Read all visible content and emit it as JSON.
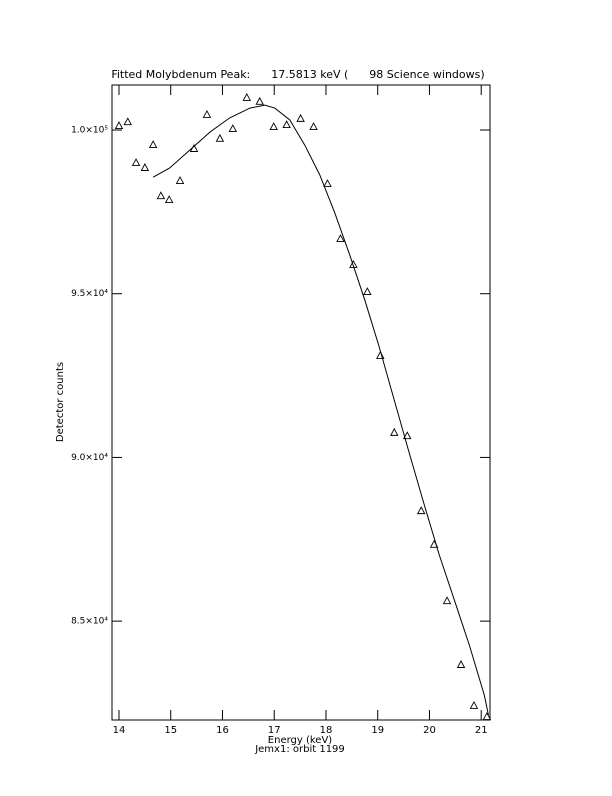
{
  "chart_data": {
    "type": "scatter",
    "title": "Fitted Molybdenum Peak:      17.5813 keV (      98 Science windows)",
    "x_label": "Energy (keV)",
    "y_label": "Detector counts",
    "subtitle": "Jemx1: orbit 1199",
    "xlim": [
      13.865,
      21.17
    ],
    "ylim": [
      81980,
      101375
    ],
    "xticks": [
      14,
      15,
      16,
      17,
      18,
      19,
      20,
      21
    ],
    "yticks": [
      {
        "value": 85000,
        "label": "8.5×10⁴"
      },
      {
        "value": 90000,
        "label": "9.0×10⁴"
      },
      {
        "value": 95000,
        "label": "9.5×10⁴"
      },
      {
        "value": 100000,
        "label": "1.0×10⁵"
      }
    ],
    "color": "#000000",
    "series": [
      {
        "marker": "triangle",
        "x": [
          14.0,
          14.17,
          14.33,
          14.5,
          14.66,
          14.81,
          14.97,
          15.18,
          15.45,
          15.7,
          15.95,
          16.2,
          16.47,
          16.72,
          16.99,
          17.24,
          17.51,
          17.76,
          18.03,
          18.28,
          18.53,
          18.8,
          19.05,
          19.32,
          19.57,
          19.84,
          20.09,
          20.34,
          20.61,
          20.86,
          21.11
        ],
        "values": [
          100120,
          100240,
          98990,
          98840,
          99540,
          97980,
          97860,
          98440,
          99420,
          100460,
          99730,
          100030,
          100980,
          100860,
          100090,
          100150,
          100340,
          100090,
          98350,
          96670,
          95880,
          95050,
          93100,
          90750,
          90650,
          88360,
          87330,
          85610,
          83660,
          82410,
          82070
        ]
      },
      {
        "marker": "line",
        "x": [
          14.66,
          14.98,
          15.37,
          15.76,
          16.14,
          16.53,
          16.82,
          17.01,
          17.3,
          17.59,
          17.88,
          18.17,
          18.46,
          18.75,
          19.03,
          19.32,
          19.61,
          19.9,
          20.19,
          20.48,
          20.77,
          21.06,
          21.14
        ],
        "values": [
          98560,
          98840,
          99390,
          99940,
          100370,
          100670,
          100760,
          100670,
          100310,
          99540,
          98630,
          97470,
          96180,
          94810,
          93370,
          91750,
          90130,
          88550,
          87020,
          85650,
          84270,
          82740,
          82130
        ]
      }
    ]
  }
}
